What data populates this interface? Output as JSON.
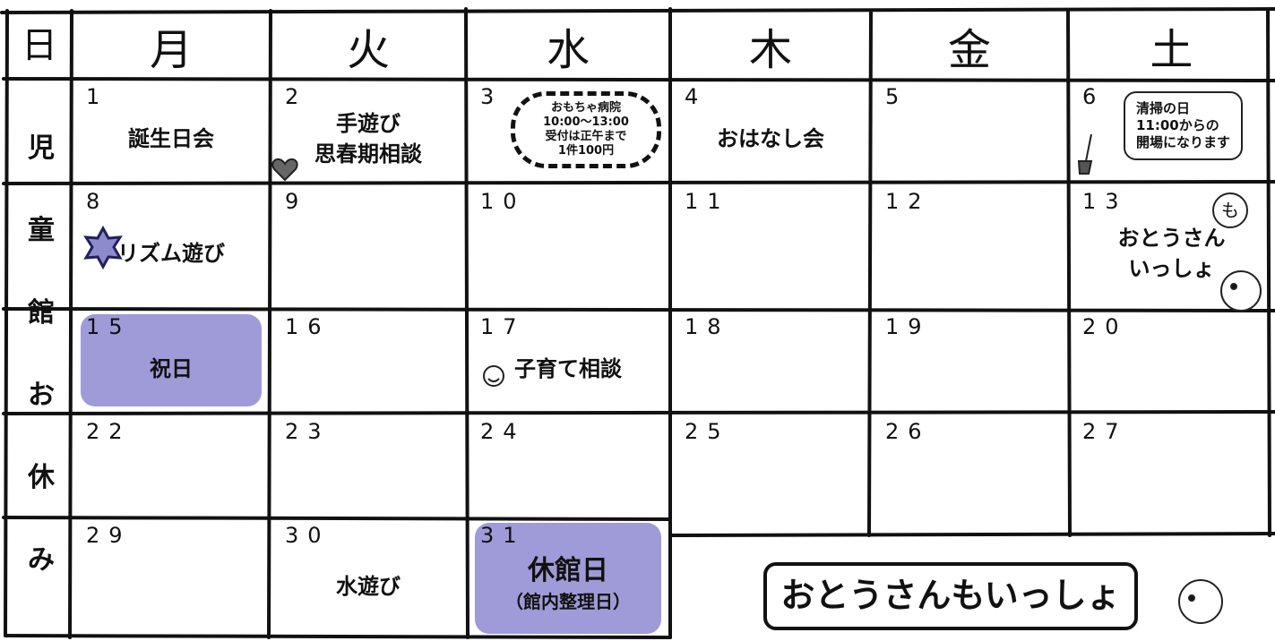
{
  "header": {
    "corner": "日",
    "weekdays": [
      "月",
      "火",
      "水",
      "木",
      "金",
      "土"
    ]
  },
  "side_label": [
    "児",
    "童",
    "館",
    "お",
    "休",
    "み"
  ],
  "weeks": [
    [
      {
        "day": "1",
        "events": [
          "誕生日会"
        ]
      },
      {
        "day": "2",
        "events": [
          "手遊び",
          "思春期相談"
        ]
      },
      {
        "day": "3",
        "note": [
          "おもちゃ病院",
          "10:00～13:00",
          "受付は正午まで",
          "1件100円"
        ]
      },
      {
        "day": "4",
        "events": [
          "おはなし会"
        ]
      },
      {
        "day": "5"
      },
      {
        "day": "6",
        "note": [
          "清掃の日",
          "11:00からの",
          "開場になります"
        ]
      }
    ],
    [
      {
        "day": "8",
        "events": [
          "リズム遊び"
        ]
      },
      {
        "day": "9"
      },
      {
        "day": "10"
      },
      {
        "day": "11"
      },
      {
        "day": "12"
      },
      {
        "day": "13",
        "events": [
          "おとうさん",
          "いっしょ"
        ],
        "note": [
          "も"
        ]
      }
    ],
    [
      {
        "day": "15",
        "events": [
          "祝日"
        ],
        "highlight": true
      },
      {
        "day": "16"
      },
      {
        "day": "17",
        "events": [
          "子育て相談"
        ]
      },
      {
        "day": "18"
      },
      {
        "day": "19"
      },
      {
        "day": "20"
      }
    ],
    [
      {
        "day": "22"
      },
      {
        "day": "23"
      },
      {
        "day": "24"
      },
      {
        "day": "25"
      },
      {
        "day": "26"
      },
      {
        "day": "27"
      }
    ],
    [
      {
        "day": "29"
      },
      {
        "day": "30",
        "events": [
          "水遊び"
        ]
      },
      {
        "day": "31",
        "events": [
          "休館日",
          "（館内整理日）"
        ],
        "highlight": true
      }
    ]
  ],
  "banner": "おとうさんもいっしょ"
}
